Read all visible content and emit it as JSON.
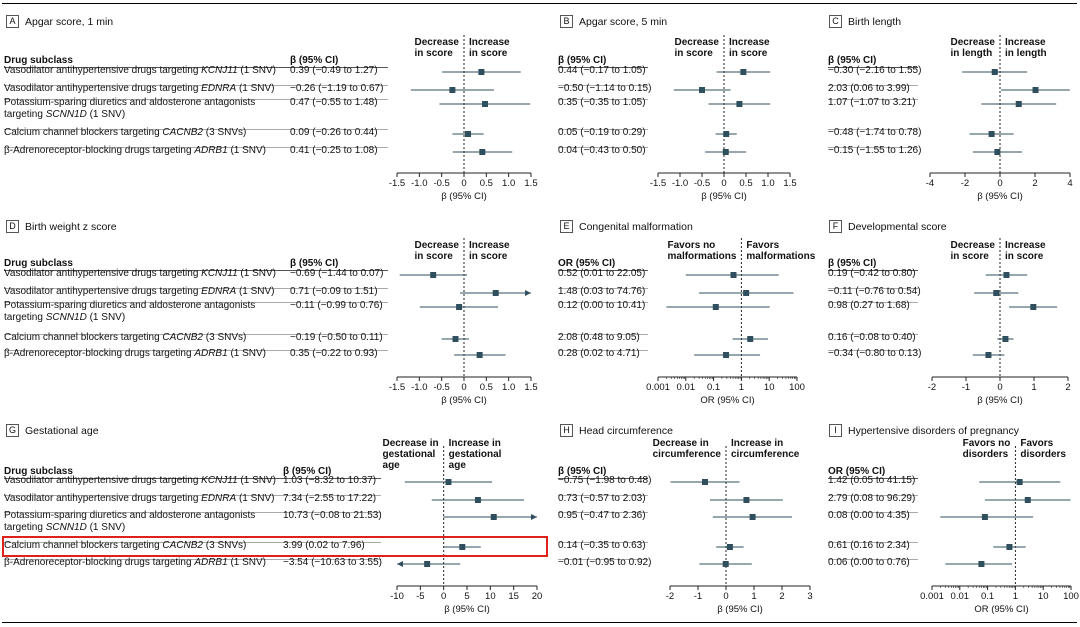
{
  "colors": {
    "marker": "#2f4f5e",
    "axis": "#222",
    "highlight": "#e0201b",
    "refline": "#222"
  },
  "labels": {
    "drug_subclass": "Drug subclass",
    "beta_ci": "β (95% CI)",
    "or_ci": "OR (95% CI)"
  },
  "drugs": [
    {
      "p1": "Vasodilator antihypertensive drugs targeting ",
      "gene": "KCNJ11",
      "p2": " (1 SNV)",
      "cont": "",
      "contGene": "",
      "contP2": ""
    },
    {
      "p1": "Vasodilator antihypertensive drugs targeting ",
      "gene": "EDNRA",
      "p2": " (1 SNV)",
      "cont": "",
      "contGene": "",
      "contP2": ""
    },
    {
      "p1": "Potassium-sparing diuretics and aldosterone antagonists",
      "gene": "",
      "p2": "",
      "cont": "targeting ",
      "contGene": "SCNN1D",
      "contP2": " (1 SNV)"
    },
    {
      "p1": "Calcium channel blockers targeting ",
      "gene": "CACNB2",
      "p2": " (3 SNVs)",
      "cont": "",
      "contGene": "",
      "contP2": ""
    },
    {
      "p1": "β-Adrenoreceptor-blocking drugs targeting ",
      "gene": "ADRB1",
      "p2": " (1 SNV)",
      "cont": "",
      "contGene": "",
      "contP2": ""
    }
  ],
  "chart_data": [
    {
      "letter": "A",
      "title": "Apgar score, 1 min",
      "type": "forest",
      "scale": "linear",
      "xlabel": "β (95% CI)",
      "xlim": [
        -1.5,
        1.5
      ],
      "ticks": [
        -1.5,
        -1.0,
        -0.5,
        0,
        0.5,
        1.0,
        1.5
      ],
      "tickLabels": [
        "-1.5",
        "-1.0",
        "-0.5",
        "0",
        "0.5",
        "1.0",
        "1.5"
      ],
      "ref": 0,
      "dirLeft": [
        "Decrease",
        "in score"
      ],
      "dirRight": [
        "Increase",
        "in score"
      ],
      "ci_header": "β (95% CI)",
      "rows": [
        {
          "ci": "0.39 (−0.49 to 1.27)",
          "est": 0.39,
          "lo": -0.49,
          "hi": 1.27
        },
        {
          "ci": "−0.26 (−1.19 to 0.67)",
          "est": -0.26,
          "lo": -1.19,
          "hi": 0.67
        },
        {
          "ci": "0.47 (−0.55 to 1.48)",
          "est": 0.47,
          "lo": -0.55,
          "hi": 1.48
        },
        {
          "ci": "0.09 (−0.26 to 0.44)",
          "est": 0.09,
          "lo": -0.26,
          "hi": 0.44
        },
        {
          "ci": "0.41 (−0.25 to 1.08)",
          "est": 0.41,
          "lo": -0.25,
          "hi": 1.08
        }
      ]
    },
    {
      "letter": "B",
      "title": "Apgar score, 5 min",
      "type": "forest",
      "scale": "linear",
      "xlabel": "β (95% CI)",
      "xlim": [
        -1.5,
        1.5
      ],
      "ticks": [
        -1.5,
        -1.0,
        -0.5,
        0,
        0.5,
        1.0,
        1.5
      ],
      "tickLabels": [
        "-1.5",
        "-1.0",
        "-0.5",
        "0",
        "0.5",
        "1.0",
        "1.5"
      ],
      "ref": 0,
      "dirLeft": [
        "Decrease",
        "in score"
      ],
      "dirRight": [
        "Increase",
        "in score"
      ],
      "ci_header": "β (95% CI)",
      "rows": [
        {
          "ci": "0.44 (−0.17 to 1.05)",
          "est": 0.44,
          "lo": -0.17,
          "hi": 1.05
        },
        {
          "ci": "−0.50 (−1.14 to 0.15)",
          "est": -0.5,
          "lo": -1.14,
          "hi": 0.15
        },
        {
          "ci": "0.35 (−0.35 to 1.05)",
          "est": 0.35,
          "lo": -0.35,
          "hi": 1.05
        },
        {
          "ci": "0.05 (−0.19 to 0.29)",
          "est": 0.05,
          "lo": -0.19,
          "hi": 0.29
        },
        {
          "ci": "0.04 (−0.43 to 0.50)",
          "est": 0.04,
          "lo": -0.43,
          "hi": 0.5
        }
      ]
    },
    {
      "letter": "C",
      "title": "Birth length",
      "type": "forest",
      "scale": "linear",
      "xlabel": "β (95% CI)",
      "xlim": [
        -4,
        4
      ],
      "ticks": [
        -4,
        -2,
        0,
        2,
        4
      ],
      "tickLabels": [
        "-4",
        "-2",
        "0",
        "2",
        "4"
      ],
      "ref": 0,
      "dirLeft": [
        "Decrease",
        "in length"
      ],
      "dirRight": [
        "Increase",
        "in length"
      ],
      "ci_header": "β (95% CI)",
      "rows": [
        {
          "ci": "−0.30 (−2.16 to 1.55)",
          "est": -0.3,
          "lo": -2.16,
          "hi": 1.55
        },
        {
          "ci": "2.03 (0.06 to 3.99)",
          "est": 2.03,
          "lo": 0.06,
          "hi": 3.99
        },
        {
          "ci": "1.07 (−1.07 to 3.21)",
          "est": 1.07,
          "lo": -1.07,
          "hi": 3.21
        },
        {
          "ci": "−0.48 (−1.74 to 0.78)",
          "est": -0.48,
          "lo": -1.74,
          "hi": 0.78
        },
        {
          "ci": "−0.15 (−1.55 to 1.26)",
          "est": -0.15,
          "lo": -1.55,
          "hi": 1.26
        }
      ]
    },
    {
      "letter": "D",
      "title": "Birth weight z score",
      "type": "forest",
      "scale": "linear",
      "xlabel": "β (95% CI)",
      "xlim": [
        -1.5,
        1.5
      ],
      "ticks": [
        -1.5,
        -1.0,
        -0.5,
        0,
        0.5,
        1.0,
        1.5
      ],
      "tickLabels": [
        "-1.5",
        "-1.0",
        "-0.5",
        "0",
        "0.5",
        "1.0",
        "1.5"
      ],
      "ref": 0,
      "dirLeft": [
        "Decrease",
        "in score"
      ],
      "dirRight": [
        "Increase",
        "in score"
      ],
      "ci_header": "β (95% CI)",
      "rows": [
        {
          "ci": "−0.69 (−1.44 to 0.07)",
          "est": -0.69,
          "lo": -1.44,
          "hi": 0.07
        },
        {
          "ci": "0.71 (−0.09 to 1.51)",
          "est": 0.71,
          "lo": -0.09,
          "hi": 1.51
        },
        {
          "ci": "−0.11 (−0.99 to 0.76)",
          "est": -0.11,
          "lo": -0.99,
          "hi": 0.76
        },
        {
          "ci": "−0.19 (−0.50 to 0.11)",
          "est": -0.19,
          "lo": -0.5,
          "hi": 0.11
        },
        {
          "ci": "0.35 (−0.22 to 0.93)",
          "est": 0.35,
          "lo": -0.22,
          "hi": 0.93
        }
      ]
    },
    {
      "letter": "E",
      "title": "Congenital malformation",
      "type": "forest",
      "scale": "log",
      "xlabel": "OR (95% CI)",
      "xlim": [
        0.001,
        100
      ],
      "ticks": [
        0.001,
        0.01,
        0.1,
        1,
        10,
        100
      ],
      "tickLabels": [
        "0.001",
        "0.01",
        "0.1",
        "1",
        "10",
        "100"
      ],
      "ref": 1,
      "dirLeft": [
        "Favors no",
        "malformations"
      ],
      "dirRight": [
        "Favors",
        "malformations"
      ],
      "ci_header": "OR (95% CI)",
      "rows": [
        {
          "ci": "0.52 (0.01 to 22.05)",
          "est": 0.52,
          "lo": 0.01,
          "hi": 22.05
        },
        {
          "ci": "1.48 (0.03 to 74.76)",
          "est": 1.48,
          "lo": 0.03,
          "hi": 74.76
        },
        {
          "ci": "0.12 (0.00 to 10.41)",
          "est": 0.12,
          "lo": 0.002,
          "hi": 10.41
        },
        {
          "ci": "2.08 (0.48 to 9.05)",
          "est": 2.08,
          "lo": 0.48,
          "hi": 9.05
        },
        {
          "ci": "0.28 (0.02 to 4.71)",
          "est": 0.28,
          "lo": 0.02,
          "hi": 4.71
        }
      ]
    },
    {
      "letter": "F",
      "title": "Developmental score",
      "type": "forest",
      "scale": "linear",
      "xlabel": "β (95% CI)",
      "xlim": [
        -2,
        2
      ],
      "ticks": [
        -2,
        -1,
        0,
        1,
        2
      ],
      "tickLabels": [
        "-2",
        "-1",
        "0",
        "1",
        "2"
      ],
      "ref": 0,
      "dirLeft": [
        "Decrease",
        "in score"
      ],
      "dirRight": [
        "Increase",
        "in score"
      ],
      "ci_header": "β (95% CI)",
      "rows": [
        {
          "ci": "0.19 (−0.42 to 0.80)",
          "est": 0.19,
          "lo": -0.42,
          "hi": 0.8
        },
        {
          "ci": "−0.11 (−0.76 to 0.54)",
          "est": -0.11,
          "lo": -0.76,
          "hi": 0.54
        },
        {
          "ci": "0.98 (0.27 to 1.68)",
          "est": 0.98,
          "lo": 0.27,
          "hi": 1.68
        },
        {
          "ci": "0.16 (−0.08 to 0.40)",
          "est": 0.16,
          "lo": -0.08,
          "hi": 0.4
        },
        {
          "ci": "−0.34 (−0.80 to 0.13)",
          "est": -0.34,
          "lo": -0.8,
          "hi": 0.13
        }
      ]
    },
    {
      "letter": "G",
      "title": "Gestational age",
      "type": "forest",
      "scale": "linear",
      "xlabel": "β (95% CI)",
      "xlim": [
        -10,
        20
      ],
      "ticks": [
        -10,
        -5,
        0,
        5,
        10,
        15,
        20
      ],
      "tickLabels": [
        "-10",
        "-5",
        "0",
        "5",
        "10",
        "15",
        "20"
      ],
      "ref": 0,
      "dirLeft": [
        "Decrease in",
        "gestational",
        "age"
      ],
      "dirRight": [
        "Increase in",
        "gestational",
        "age"
      ],
      "ci_header": "β (95% CI)",
      "rows": [
        {
          "ci": "1.03 (−8.32 to 10.37)",
          "est": 1.03,
          "lo": -8.32,
          "hi": 10.37
        },
        {
          "ci": "7.34 (−2.55 to 17.22)",
          "est": 7.34,
          "lo": -2.55,
          "hi": 17.22
        },
        {
          "ci": "10.73 (−0.08 to 21.53)",
          "est": 10.73,
          "lo": -0.08,
          "hi": 21.53
        },
        {
          "ci": "3.99 (0.02 to 7.96)",
          "est": 3.99,
          "lo": 0.02,
          "hi": 7.96
        },
        {
          "ci": "−3.54 (−10.63 to 3.55)",
          "est": -3.54,
          "lo": -10.63,
          "hi": 3.55
        }
      ]
    },
    {
      "letter": "H",
      "title": "Head circumference",
      "type": "forest",
      "scale": "linear",
      "xlabel": "β (95% CI)",
      "xlim": [
        -2,
        3
      ],
      "ticks": [
        -2,
        -1,
        0,
        1,
        2,
        3
      ],
      "tickLabels": [
        "-2",
        "-1",
        "0",
        "1",
        "2",
        "3"
      ],
      "ref": 0,
      "dirLeft": [
        "Decrease in",
        "circumference"
      ],
      "dirRight": [
        "Increase in",
        "circumference"
      ],
      "ci_header": "β (95% CI)",
      "rows": [
        {
          "ci": "−0.75 (−1.98 to 0.48)",
          "est": -0.75,
          "lo": -1.98,
          "hi": 0.48
        },
        {
          "ci": "0.73 (−0.57 to 2.03)",
          "est": 0.73,
          "lo": -0.57,
          "hi": 2.03
        },
        {
          "ci": "0.95 (−0.47 to 2.36)",
          "est": 0.95,
          "lo": -0.47,
          "hi": 2.36
        },
        {
          "ci": "0.14 (−0.35 to 0.63)",
          "est": 0.14,
          "lo": -0.35,
          "hi": 0.63
        },
        {
          "ci": "−0.01 (−0.95 to 0.92)",
          "est": -0.01,
          "lo": -0.95,
          "hi": 0.92
        }
      ]
    },
    {
      "letter": "I",
      "title": "Hypertensive disorders of pregnancy",
      "type": "forest",
      "scale": "log",
      "xlabel": "OR (95% CI)",
      "xlim": [
        0.001,
        100
      ],
      "ticks": [
        0.001,
        0.01,
        0.1,
        1,
        10,
        100
      ],
      "tickLabels": [
        "0.001",
        "0.01",
        "0.1",
        "1",
        "10",
        "100"
      ],
      "ref": 1,
      "dirLeft": [
        "Favors no",
        "disorders"
      ],
      "dirRight": [
        "Favors",
        "disorders"
      ],
      "ci_header": "OR (95% CI)",
      "rows": [
        {
          "ci": "1.42 (0.05 to 41.15)",
          "est": 1.42,
          "lo": 0.05,
          "hi": 41.15
        },
        {
          "ci": "2.79 (0.08 to 96.29)",
          "est": 2.79,
          "lo": 0.08,
          "hi": 96.29
        },
        {
          "ci": "0.08 (0.00 to 4.35)",
          "est": 0.08,
          "lo": 0.002,
          "hi": 4.35
        },
        {
          "ci": "0.61 (0.16 to 2.34)",
          "est": 0.61,
          "lo": 0.16,
          "hi": 2.34
        },
        {
          "ci": "0.06 (0.00 to 0.76)",
          "est": 0.06,
          "lo": 0.003,
          "hi": 0.76
        }
      ]
    }
  ]
}
